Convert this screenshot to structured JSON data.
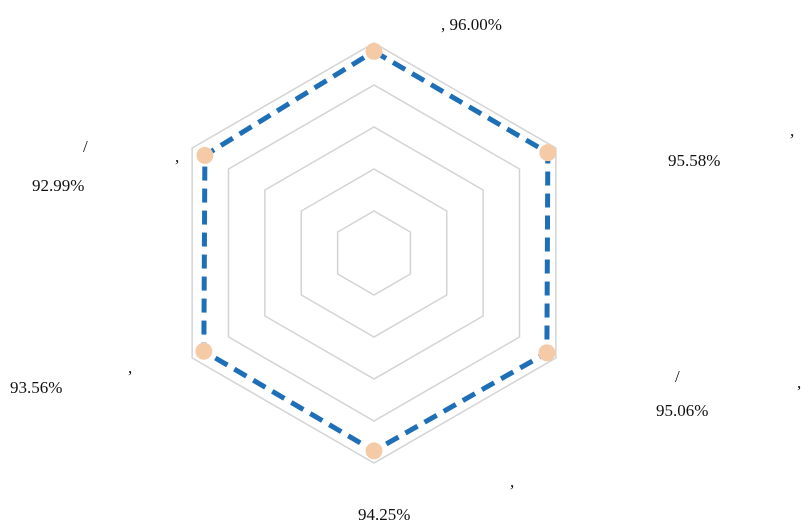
{
  "chart_data": {
    "type": "radar",
    "grid": true,
    "rings": 5,
    "rmax": 1,
    "colors": {
      "grid": "#d3d3d3",
      "series_line": "#1f6fb7",
      "marker": "#f5cba7"
    },
    "axes": [
      {
        "label": ", 96.00%",
        "value": 0.96
      },
      {
        "label": "95.58%",
        "value": 0.9558
      },
      {
        "label": "95.06%",
        "value": 0.9506
      },
      {
        "label": "94.25%",
        "value": 0.9425
      },
      {
        "label": "93.56%",
        "value": 0.9356
      },
      {
        "label": "92.99%",
        "value": 0.9299
      }
    ],
    "fragments": [
      ",",
      "/",
      ",",
      ",",
      ",",
      "/",
      ","
    ]
  }
}
